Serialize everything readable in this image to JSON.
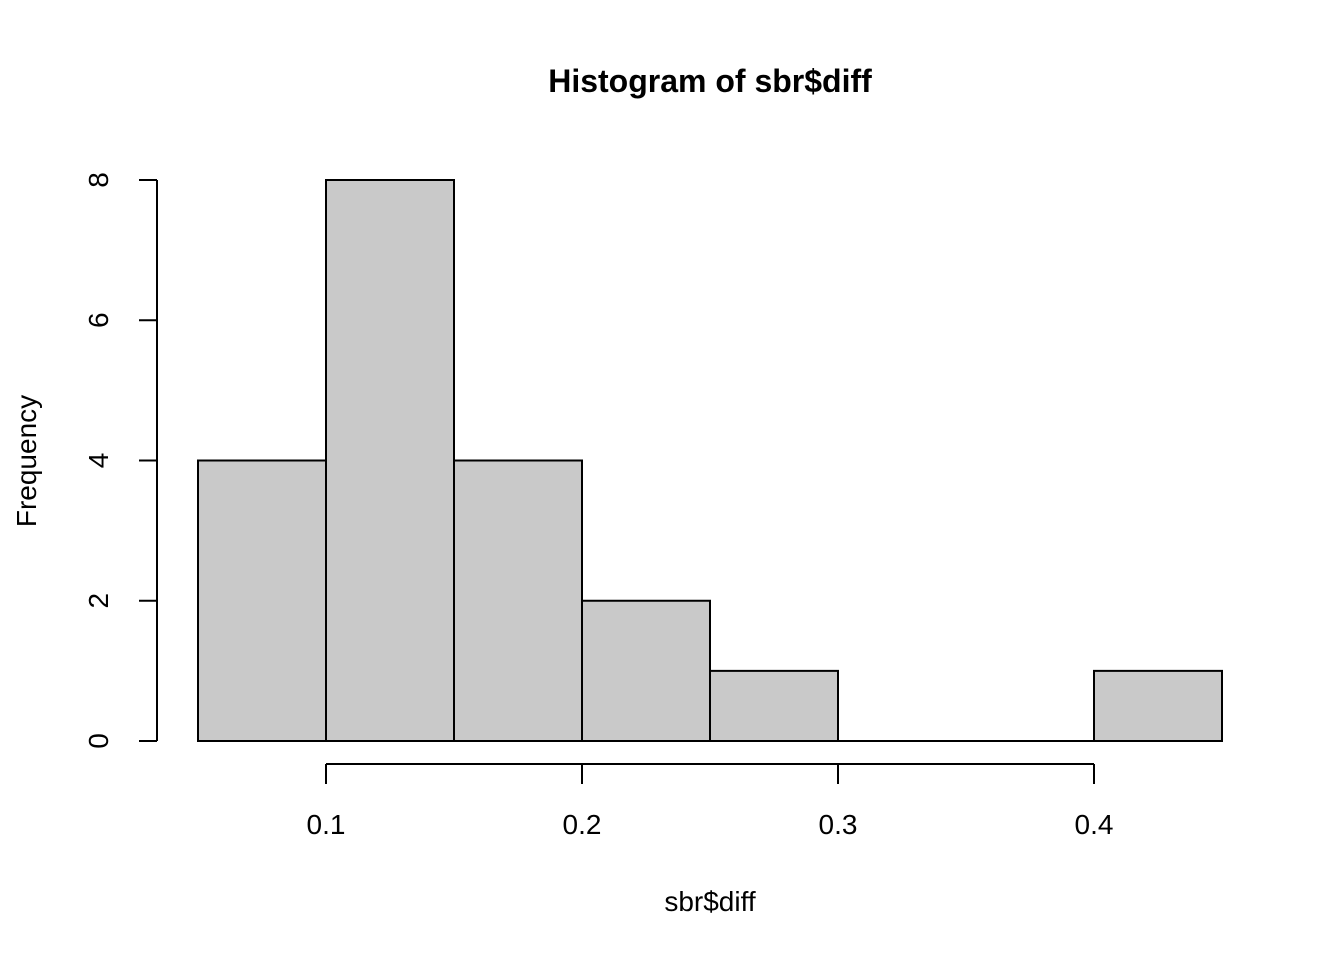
{
  "chart_data": {
    "type": "bar",
    "title": "Histogram of sbr$diff",
    "xlabel": "sbr$diff",
    "ylabel": "Frequency",
    "bins": [
      {
        "x0": 0.05,
        "x1": 0.1,
        "count": 4
      },
      {
        "x0": 0.1,
        "x1": 0.15,
        "count": 8
      },
      {
        "x0": 0.15,
        "x1": 0.2,
        "count": 4
      },
      {
        "x0": 0.2,
        "x1": 0.25,
        "count": 2
      },
      {
        "x0": 0.25,
        "x1": 0.3,
        "count": 1
      },
      {
        "x0": 0.3,
        "x1": 0.35,
        "count": 0
      },
      {
        "x0": 0.35,
        "x1": 0.4,
        "count": 0
      },
      {
        "x0": 0.4,
        "x1": 0.45,
        "count": 1
      }
    ],
    "xlim": [
      0.05,
      0.45
    ],
    "ylim": [
      0,
      8
    ],
    "xticks": [
      {
        "value": 0.1,
        "label": "0.1"
      },
      {
        "value": 0.2,
        "label": "0.2"
      },
      {
        "value": 0.3,
        "label": "0.3"
      },
      {
        "value": 0.4,
        "label": "0.4"
      }
    ],
    "yticks": [
      {
        "value": 0,
        "label": "0"
      },
      {
        "value": 2,
        "label": "2"
      },
      {
        "value": 4,
        "label": "4"
      },
      {
        "value": 6,
        "label": "6"
      },
      {
        "value": 8,
        "label": "8"
      }
    ],
    "bar_color": "#c9c9c9",
    "grid": false,
    "legend": "none"
  }
}
